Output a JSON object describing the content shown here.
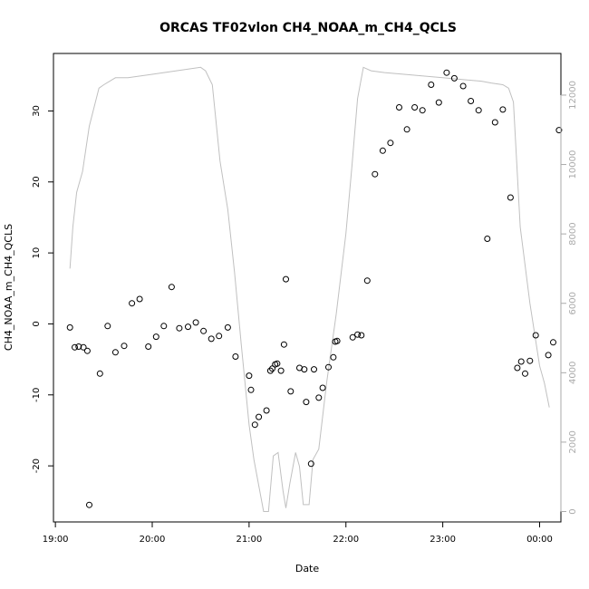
{
  "chart_data": {
    "type": "scatter",
    "title": "ORCAS TF02vlon CH4_NOAA_m_CH4_QCLS",
    "xlabel": "Date",
    "ylabel": "CH4_NOAA_m_CH4_QCLS",
    "grid": false,
    "legend": "none",
    "x_axis": {
      "unit": "hours since 19:00",
      "range": [
        -0.02,
        5.22
      ],
      "ticks": [
        {
          "value": 0,
          "label": "19:00"
        },
        {
          "value": 1,
          "label": "20:00"
        },
        {
          "value": 2,
          "label": "21:00"
        },
        {
          "value": 3,
          "label": "22:00"
        },
        {
          "value": 4,
          "label": "23:00"
        },
        {
          "value": 5,
          "label": "00:00"
        }
      ]
    },
    "y_axis": {
      "range": [
        -27.9,
        38.1
      ],
      "ticks": [
        {
          "value": -20,
          "label": "-20"
        },
        {
          "value": -10,
          "label": "-10"
        },
        {
          "value": 0,
          "label": "0"
        },
        {
          "value": 10,
          "label": "10"
        },
        {
          "value": 20,
          "label": "20"
        },
        {
          "value": 30,
          "label": "30"
        }
      ]
    },
    "y2_axis": {
      "range": [
        -300,
        13200
      ],
      "color": "#aaaaaa",
      "ticks": [
        {
          "value": 0,
          "label": "0"
        },
        {
          "value": 2000,
          "label": "2000"
        },
        {
          "value": 4000,
          "label": "4000"
        },
        {
          "value": 6000,
          "label": "6000"
        },
        {
          "value": 8000,
          "label": "8000"
        },
        {
          "value": 10000,
          "label": "10000"
        },
        {
          "value": 12000,
          "label": "12000"
        }
      ]
    },
    "series": [
      {
        "type": "scatter",
        "axis": "left",
        "marker": "open-circle",
        "color": "#000000",
        "x": [
          0.15,
          0.2,
          0.24,
          0.29,
          0.33,
          0.35,
          0.46,
          0.54,
          0.62,
          0.71,
          0.79,
          0.87,
          0.96,
          1.04,
          1.12,
          1.2,
          1.28,
          1.37,
          1.45,
          1.53,
          1.61,
          1.69,
          1.78,
          1.86,
          2.0,
          2.02,
          2.06,
          2.1,
          2.18,
          2.22,
          2.24,
          2.27,
          2.29,
          2.33,
          2.36,
          2.38,
          2.43,
          2.52,
          2.57,
          2.59,
          2.64,
          2.67,
          2.72,
          2.76,
          2.82,
          2.87,
          2.89,
          2.91,
          3.07,
          3.12,
          3.16,
          3.22,
          3.3,
          3.38,
          3.46,
          3.55,
          3.63,
          3.71,
          3.79,
          3.88,
          3.96,
          4.04,
          4.12,
          4.21,
          4.29,
          4.37,
          4.46,
          4.54,
          4.62,
          4.7,
          4.77,
          4.81,
          4.85,
          4.9,
          4.96,
          5.09,
          5.14,
          5.2
        ],
        "y": [
          -0.5,
          -3.3,
          -3.2,
          -3.3,
          -3.8,
          -25.5,
          -7.0,
          -0.3,
          -4.0,
          -3.1,
          2.9,
          3.5,
          -3.2,
          -1.8,
          -0.3,
          5.2,
          -0.6,
          -0.4,
          0.2,
          -1.0,
          -2.1,
          -1.7,
          -0.5,
          -4.6,
          -7.3,
          -9.3,
          -14.2,
          -13.1,
          -12.2,
          -6.6,
          -6.3,
          -5.7,
          -5.6,
          -6.6,
          -2.9,
          6.3,
          -9.5,
          -6.2,
          -6.4,
          -11.0,
          -19.7,
          -6.4,
          -10.4,
          -9.0,
          -6.1,
          -4.7,
          -2.5,
          -2.4,
          -1.9,
          -1.5,
          -1.6,
          6.1,
          21.1,
          24.4,
          25.5,
          30.5,
          27.4,
          30.5,
          30.1,
          33.7,
          31.2,
          35.4,
          34.6,
          33.5,
          31.4,
          30.1,
          12.0,
          28.4,
          30.2,
          17.8,
          -6.2,
          -5.3,
          -7.0,
          -5.2,
          -1.6,
          -4.4,
          -2.6,
          27.3
        ]
      },
      {
        "type": "line",
        "axis": "right",
        "color": "#c0c0c0",
        "x": [
          0.15,
          0.18,
          0.22,
          0.28,
          0.35,
          0.45,
          0.5,
          0.62,
          0.75,
          1.0,
          1.25,
          1.5,
          1.55,
          1.62,
          1.7,
          1.78,
          1.85,
          1.92,
          2.0,
          2.05,
          2.15,
          2.2,
          2.25,
          2.3,
          2.35,
          2.38,
          2.42,
          2.48,
          2.52,
          2.56,
          2.62,
          2.66,
          2.72,
          2.8,
          2.9,
          3.0,
          3.06,
          3.12,
          3.18,
          3.26,
          3.4,
          3.6,
          3.8,
          4.0,
          4.2,
          4.4,
          4.5,
          4.62,
          4.68,
          4.73,
          4.8,
          4.9,
          5.0,
          5.05,
          5.1
        ],
        "y": [
          7000,
          8200,
          9200,
          9800,
          11100,
          12200,
          12300,
          12500,
          12500,
          12600,
          12700,
          12800,
          12700,
          12300,
          10100,
          8700,
          6900,
          4800,
          2500,
          1500,
          0,
          0,
          1600,
          1700,
          600,
          100,
          800,
          1700,
          1300,
          200,
          200,
          1500,
          1800,
          3700,
          5700,
          8000,
          9900,
          11900,
          12800,
          12700,
          12650,
          12600,
          12550,
          12500,
          12450,
          12400,
          12350,
          12300,
          12200,
          11800,
          8200,
          6000,
          4200,
          3700,
          3000
        ]
      }
    ]
  }
}
